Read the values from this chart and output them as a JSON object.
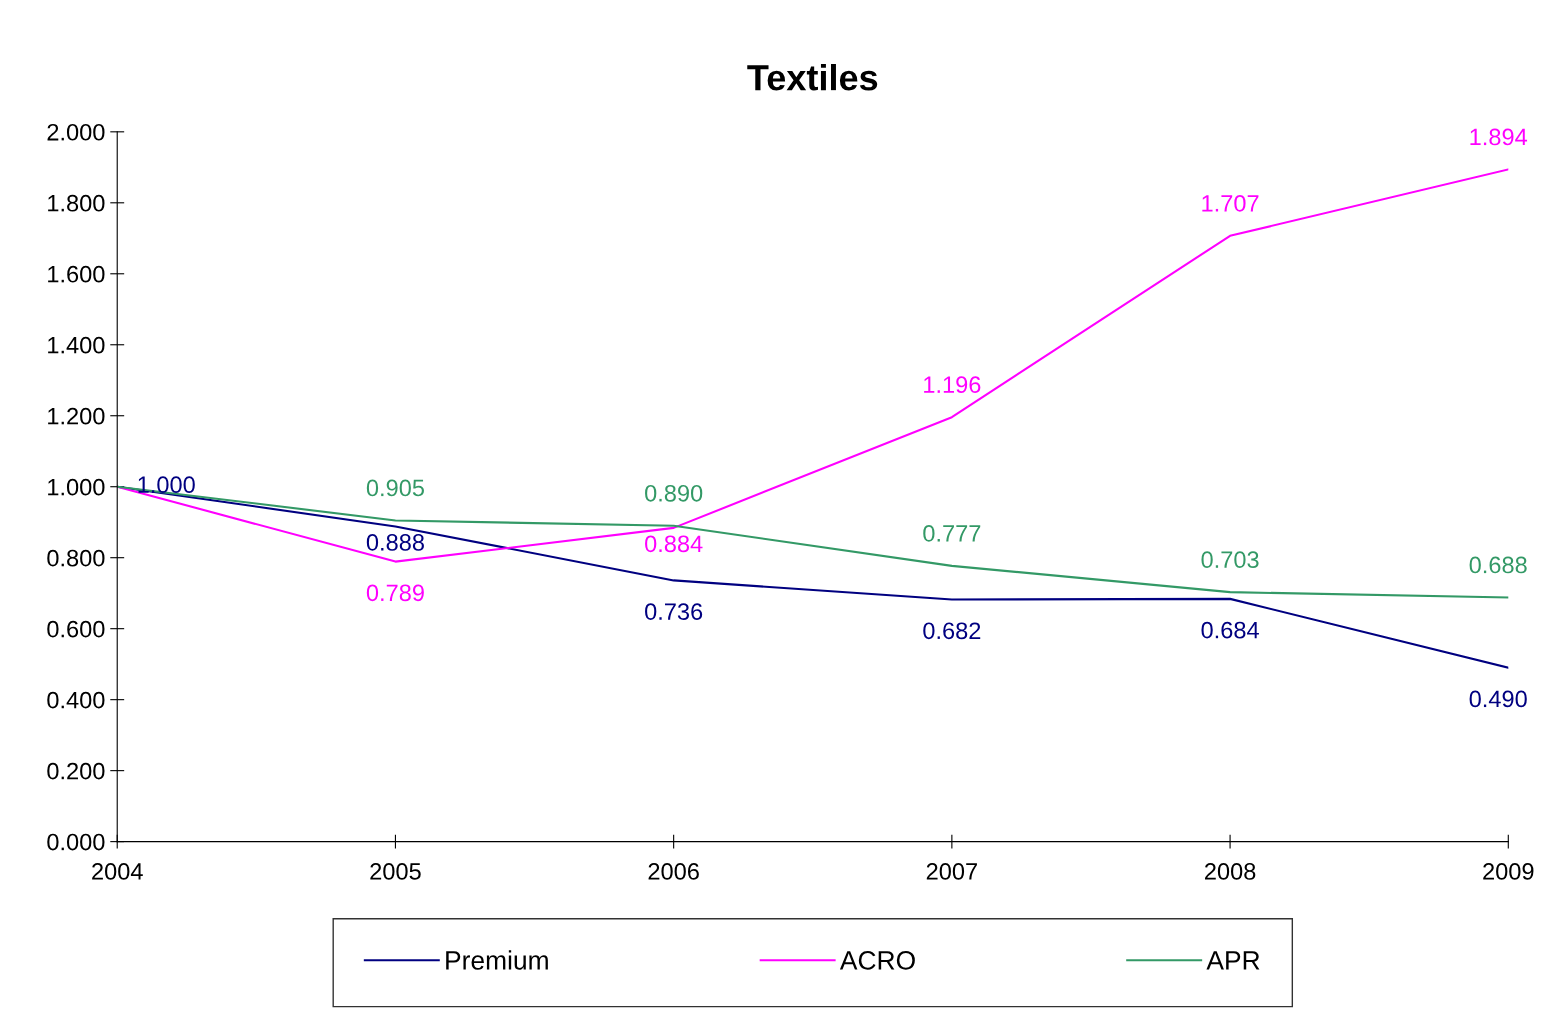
{
  "chart_data": {
    "type": "line",
    "title": "Textiles",
    "x": [
      2004,
      2005,
      2006,
      2007,
      2008,
      2009
    ],
    "series": [
      {
        "name": "Premium",
        "color": "#000080",
        "values": [
          1.0,
          0.888,
          0.736,
          0.682,
          0.684,
          0.49
        ],
        "value_labels": [
          "1.000",
          "0.888",
          "0.736",
          "0.682",
          "0.684",
          "0.490"
        ]
      },
      {
        "name": "ACRO",
        "color": "#ff00ff",
        "values": [
          1.0,
          0.789,
          0.884,
          1.196,
          1.707,
          1.894
        ],
        "value_labels": [
          null,
          "0.789",
          "0.884",
          "1.196",
          "1.707",
          "1.894"
        ]
      },
      {
        "name": "APR",
        "color": "#339966",
        "values": [
          1.0,
          0.905,
          0.89,
          0.777,
          0.703,
          0.688
        ],
        "value_labels": [
          null,
          "0.905",
          "0.890",
          "0.777",
          "0.703",
          "0.688"
        ]
      }
    ],
    "xlim": [
      2004,
      2009
    ],
    "xticks": [
      2004,
      2005,
      2006,
      2007,
      2008,
      2009
    ],
    "ylim": [
      0,
      2
    ],
    "yticks": [
      {
        "value": 0,
        "label": "0.000"
      },
      {
        "value": 0.2,
        "label": "0.200"
      },
      {
        "value": 0.4,
        "label": "0.400"
      },
      {
        "value": 0.6,
        "label": "0.600"
      },
      {
        "value": 0.8,
        "label": "0.800"
      },
      {
        "value": 1.0,
        "label": "1.000"
      },
      {
        "value": 1.2,
        "label": "1.200"
      },
      {
        "value": 1.4,
        "label": "1.400"
      },
      {
        "value": 1.6,
        "label": "1.600"
      },
      {
        "value": 1.8,
        "label": "1.800"
      },
      {
        "value": 2.0,
        "label": "2.000"
      }
    ],
    "grid": false,
    "legend": "bottom",
    "marker": "none",
    "line_style": "solid"
  }
}
